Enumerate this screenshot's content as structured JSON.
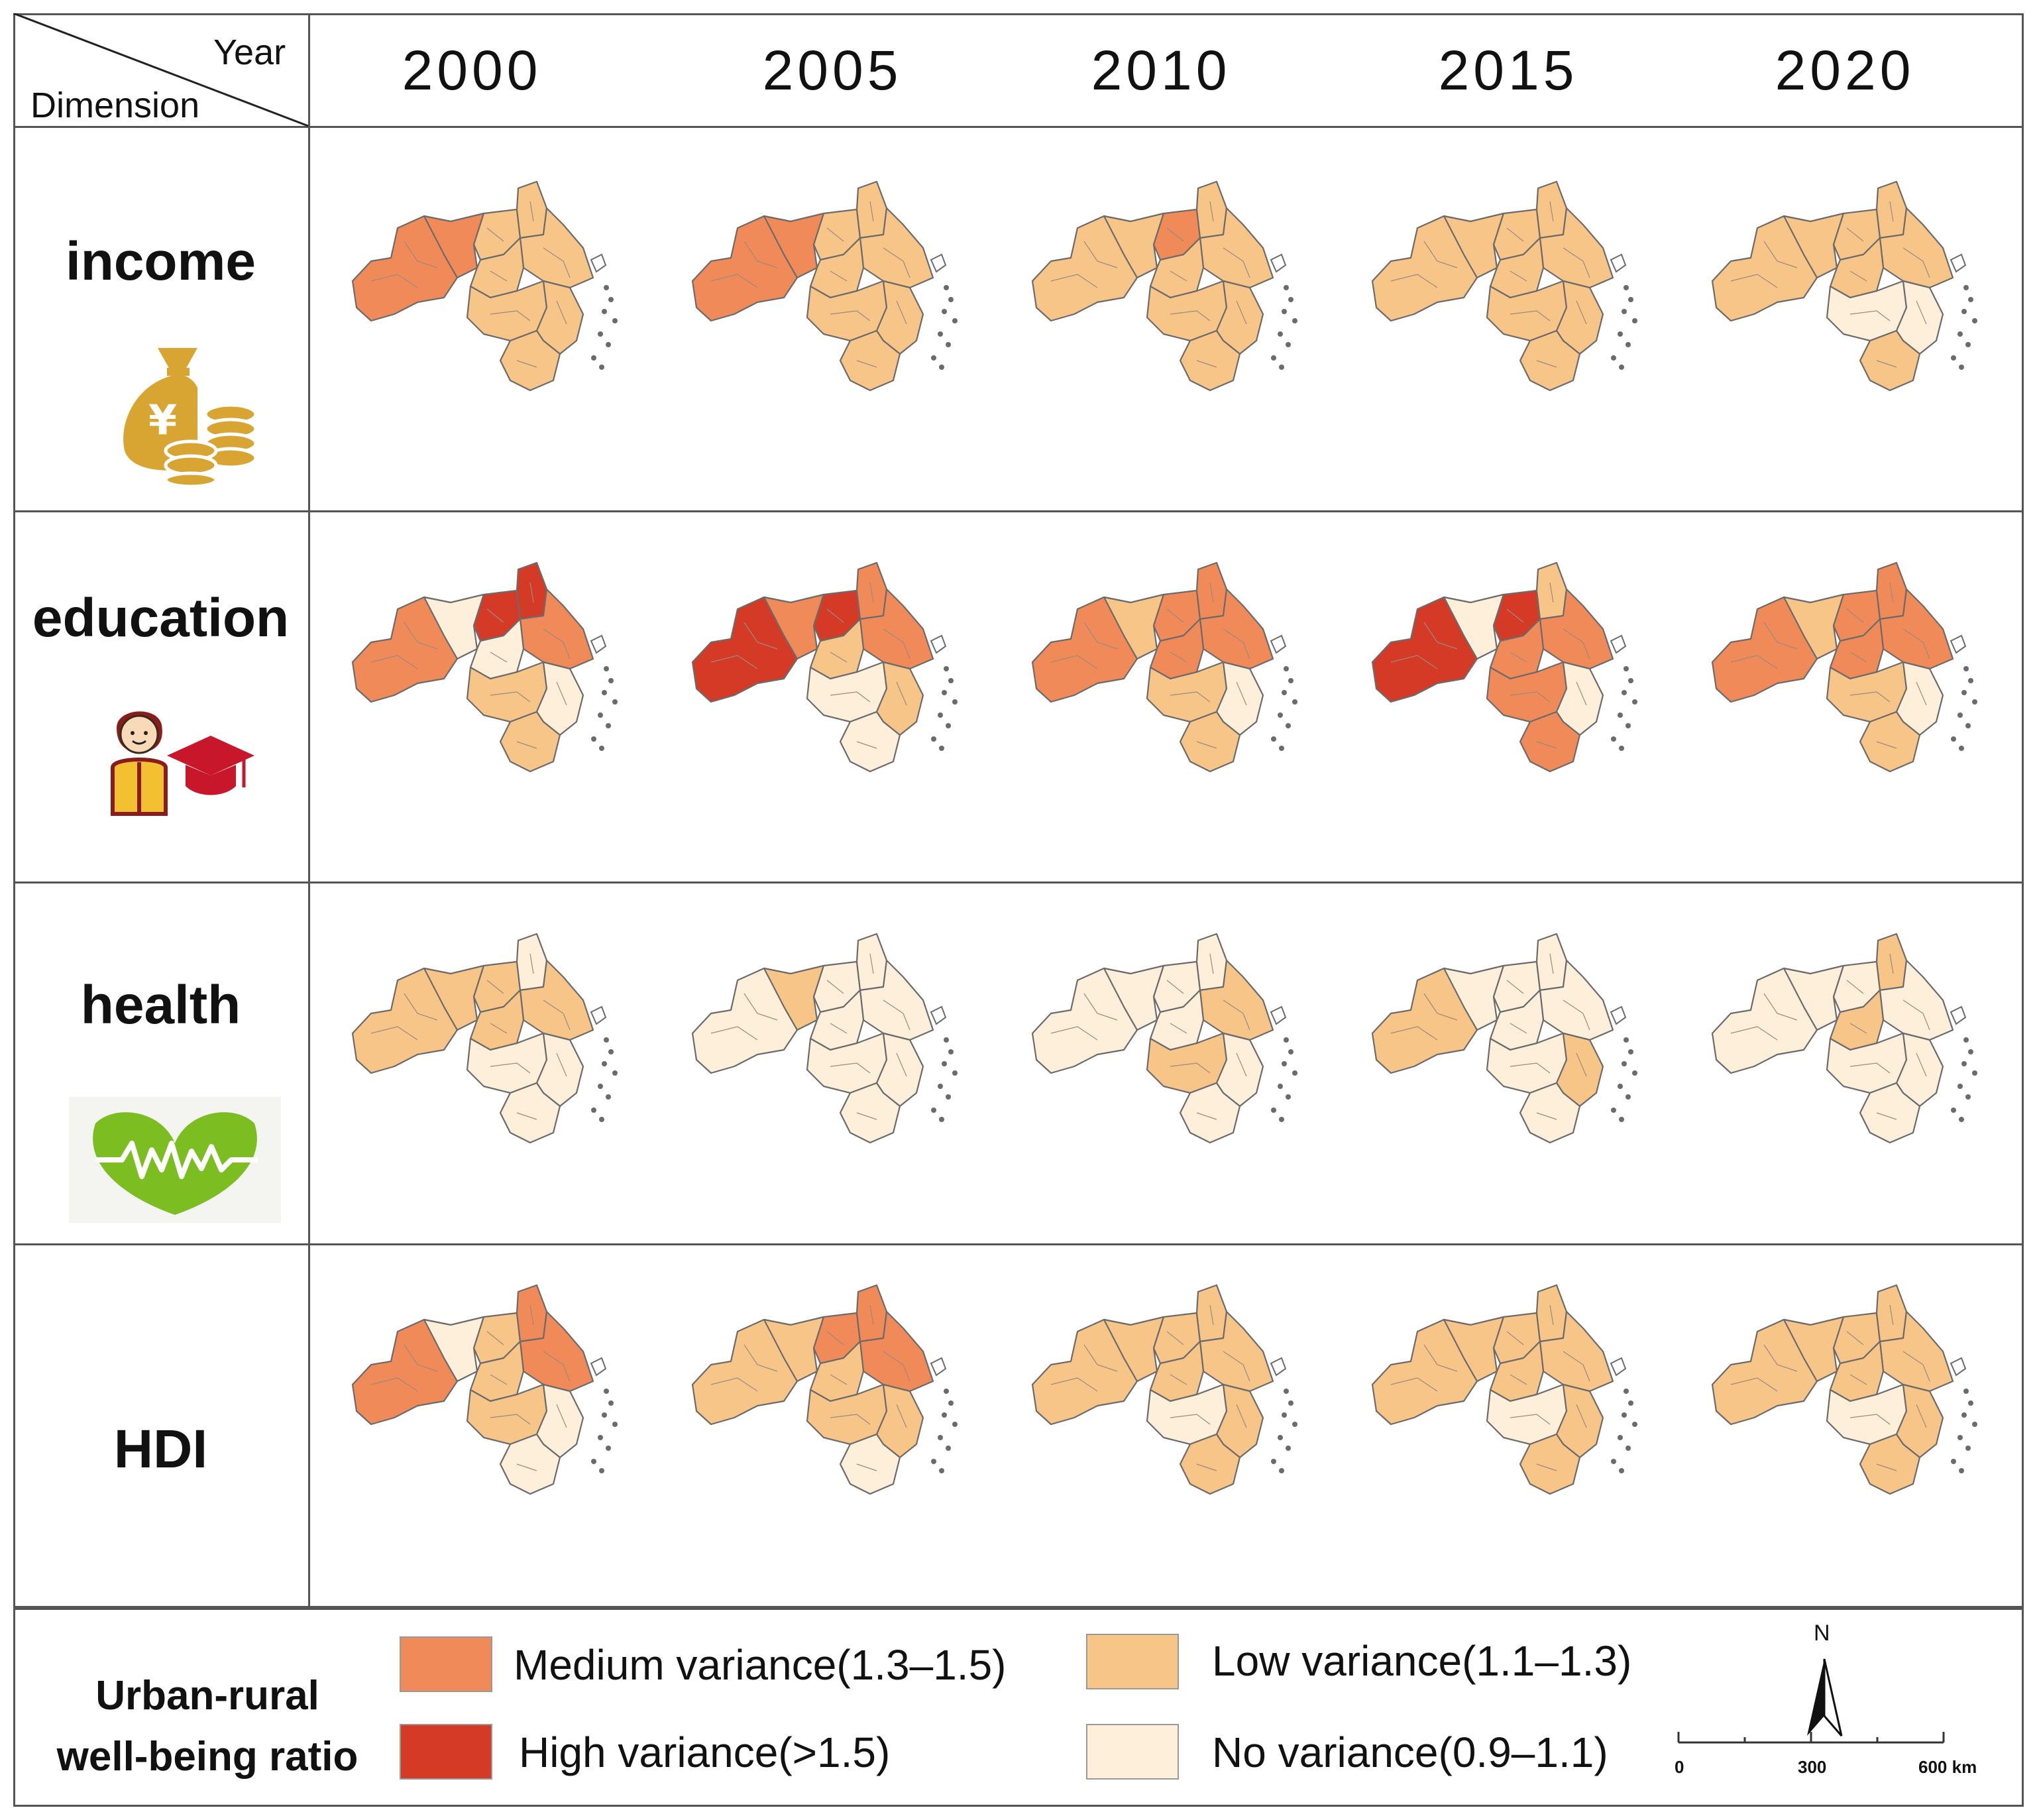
{
  "header": {
    "corner_year": "Year",
    "corner_dimension": "Dimension",
    "years": [
      "2000",
      "2005",
      "2010",
      "2015",
      "2020"
    ]
  },
  "rows": [
    {
      "label": "income",
      "icon": "money-bag-coins-icon",
      "maps": [
        {
          "year": "2000",
          "regions": [
            "med",
            "med",
            "low",
            "low",
            "low",
            "low",
            "low",
            "low",
            "low"
          ]
        },
        {
          "year": "2005",
          "regions": [
            "med",
            "med",
            "low",
            "low",
            "low",
            "low",
            "low",
            "low",
            "low"
          ]
        },
        {
          "year": "2010",
          "regions": [
            "low",
            "low",
            "med",
            "low",
            "low",
            "low",
            "low",
            "low",
            "low"
          ]
        },
        {
          "year": "2015",
          "regions": [
            "low",
            "low",
            "low",
            "low",
            "low",
            "low",
            "low",
            "low",
            "low"
          ]
        },
        {
          "year": "2020",
          "regions": [
            "low",
            "low",
            "low",
            "low",
            "low",
            "low",
            "none",
            "none",
            "low"
          ]
        }
      ]
    },
    {
      "label": "education",
      "icon": "student-graduation-cap-icon",
      "maps": [
        {
          "year": "2000",
          "regions": [
            "med",
            "none",
            "high",
            "high",
            "med",
            "none",
            "low",
            "none",
            "low"
          ]
        },
        {
          "year": "2005",
          "regions": [
            "high",
            "med",
            "high",
            "med",
            "med",
            "low",
            "none",
            "low",
            "none"
          ]
        },
        {
          "year": "2010",
          "regions": [
            "med",
            "low",
            "med",
            "med",
            "med",
            "med",
            "low",
            "none",
            "low"
          ]
        },
        {
          "year": "2015",
          "regions": [
            "high",
            "none",
            "high",
            "low",
            "med",
            "med",
            "med",
            "none",
            "med"
          ]
        },
        {
          "year": "2020",
          "regions": [
            "med",
            "low",
            "med",
            "med",
            "med",
            "med",
            "low",
            "none",
            "low"
          ]
        }
      ]
    },
    {
      "label": "health",
      "icon": "heartbeat-heart-icon",
      "maps": [
        {
          "year": "2000",
          "regions": [
            "low",
            "low",
            "low",
            "none",
            "low",
            "low",
            "none",
            "none",
            "none"
          ]
        },
        {
          "year": "2005",
          "regions": [
            "none",
            "low",
            "none",
            "none",
            "none",
            "none",
            "none",
            "none",
            "none"
          ]
        },
        {
          "year": "2010",
          "regions": [
            "none",
            "none",
            "none",
            "none",
            "low",
            "none",
            "low",
            "none",
            "none"
          ]
        },
        {
          "year": "2015",
          "regions": [
            "low",
            "none",
            "none",
            "none",
            "none",
            "none",
            "none",
            "low",
            "none"
          ]
        },
        {
          "year": "2020",
          "regions": [
            "none",
            "none",
            "none",
            "low",
            "none",
            "low",
            "none",
            "none",
            "none"
          ]
        }
      ]
    },
    {
      "label": "HDI",
      "icon": "",
      "maps": [
        {
          "year": "2000",
          "regions": [
            "med",
            "none",
            "low",
            "med",
            "med",
            "low",
            "low",
            "none",
            "none"
          ]
        },
        {
          "year": "2005",
          "regions": [
            "low",
            "low",
            "med",
            "med",
            "med",
            "low",
            "low",
            "low",
            "none"
          ]
        },
        {
          "year": "2010",
          "regions": [
            "low",
            "low",
            "low",
            "low",
            "low",
            "low",
            "none",
            "low",
            "low"
          ]
        },
        {
          "year": "2015",
          "regions": [
            "low",
            "low",
            "low",
            "low",
            "low",
            "low",
            "none",
            "low",
            "low"
          ]
        },
        {
          "year": "2020",
          "regions": [
            "low",
            "low",
            "low",
            "low",
            "low",
            "low",
            "none",
            "low",
            "low"
          ]
        }
      ]
    }
  ],
  "legend": {
    "title_line1": "Urban-rural",
    "title_line2": "well-being ratio",
    "classes": [
      {
        "key": "med",
        "label": "Medium variance(1.3–1.5)",
        "color": "#f08a58"
      },
      {
        "key": "low",
        "label": "Low variance(1.1–1.3)",
        "color": "#f8c588"
      },
      {
        "key": "high",
        "label": "High variance(>1.5)",
        "color": "#d53a26"
      },
      {
        "key": "none",
        "label": "No variance(0.9–1.1)",
        "color": "#fdefd9"
      }
    ]
  },
  "north_label": "N",
  "scale": {
    "ticks": [
      "0",
      "300",
      "600 km"
    ]
  },
  "colors": {
    "border": "#555555",
    "region_outline": "#9a8a80",
    "coast": "#6b6b6b",
    "shanghai": "#ffffff"
  }
}
